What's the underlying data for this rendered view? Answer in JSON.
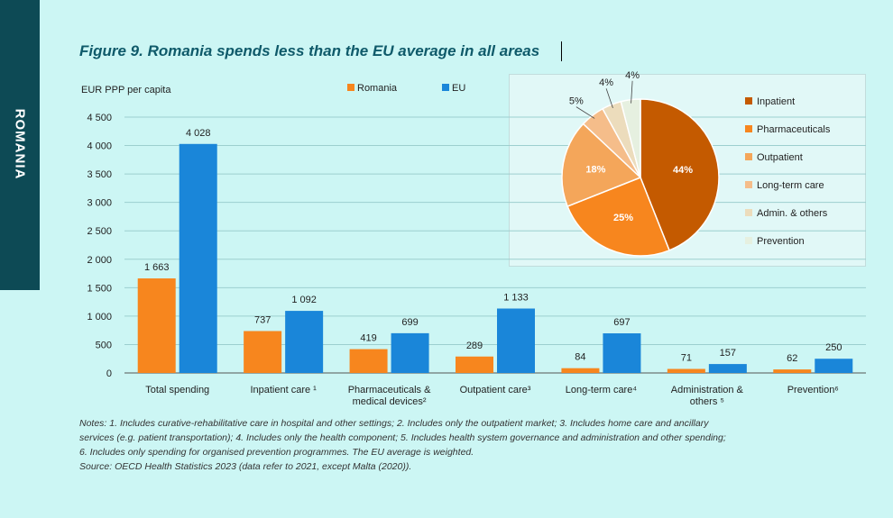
{
  "side_tab": "ROMANIA",
  "title": "Figure 9. Romania spends less than the EU average in all areas",
  "bar_chart": {
    "ylabel": "EUR PPP per capita",
    "ytick_labels": [
      "0",
      "500",
      "1 000",
      "1 500",
      "2 000",
      "2 500",
      "3 000",
      "3 500",
      "4 000",
      "4 500"
    ],
    "legend": {
      "romania": "Romania",
      "eu": "EU"
    }
  },
  "pie_legend": [
    "Inpatient",
    "Pharmaceuticals",
    "Outpatient",
    "Long-term care",
    "Admin. & others",
    "Prevention"
  ],
  "notes": [
    "Notes: 1. Includes curative-rehabilitative care in hospital and other settings; 2. Includes only the outpatient market; 3. Includes home care and ancillary",
    "services (e.g. patient transportation); 4. Includes only the health component; 5. Includes health system governance and administration and other spending;",
    "6. Includes only spending for organised prevention programmes. The EU average is weighted.",
    "Source: OECD Health Statistics 2023 (data refer to 2021, except Malta (2020))."
  ],
  "colors": {
    "romania": "#f7861e",
    "eu": "#1a86d9",
    "pie": [
      "#c45a00",
      "#f7861e",
      "#f4a65a",
      "#f5bd8a",
      "#ecdcbc",
      "#e6f0e0"
    ]
  },
  "chart_data": [
    {
      "type": "bar",
      "title": "Figure 9. Romania spends less than the EU average in all areas",
      "ylabel": "EUR PPP per capita",
      "ylim": [
        0,
        4500
      ],
      "grid": true,
      "legend_position": "top",
      "categories": [
        [
          "Total spending"
        ],
        [
          "Inpatient care ¹"
        ],
        [
          "Pharmaceuticals &",
          "medical devices²"
        ],
        [
          "Outpatient care³"
        ],
        [
          "Long-term care⁴"
        ],
        [
          "Administration &",
          "others ⁵"
        ],
        [
          "Prevention⁶"
        ]
      ],
      "series": [
        {
          "name": "Romania",
          "values": [
            1663,
            737,
            419,
            289,
            84,
            71,
            62
          ],
          "labels": [
            "1 663",
            "737",
            "419",
            "289",
            "84",
            "71",
            "62"
          ]
        },
        {
          "name": "EU",
          "values": [
            4028,
            1092,
            699,
            1133,
            697,
            157,
            250
          ],
          "labels": [
            "4 028",
            "1 092",
            "699",
            "1 133",
            "697",
            "157",
            "250"
          ]
        }
      ]
    },
    {
      "type": "pie",
      "categories": [
        "Inpatient",
        "Pharmaceuticals",
        "Outpatient",
        "Long-term care",
        "Admin. & others",
        "Prevention"
      ],
      "values": [
        44,
        25,
        18,
        5,
        4,
        4
      ],
      "labels": [
        "44%",
        "25%",
        "18%",
        "5%",
        "4%",
        "4%"
      ],
      "legend_position": "right"
    }
  ]
}
